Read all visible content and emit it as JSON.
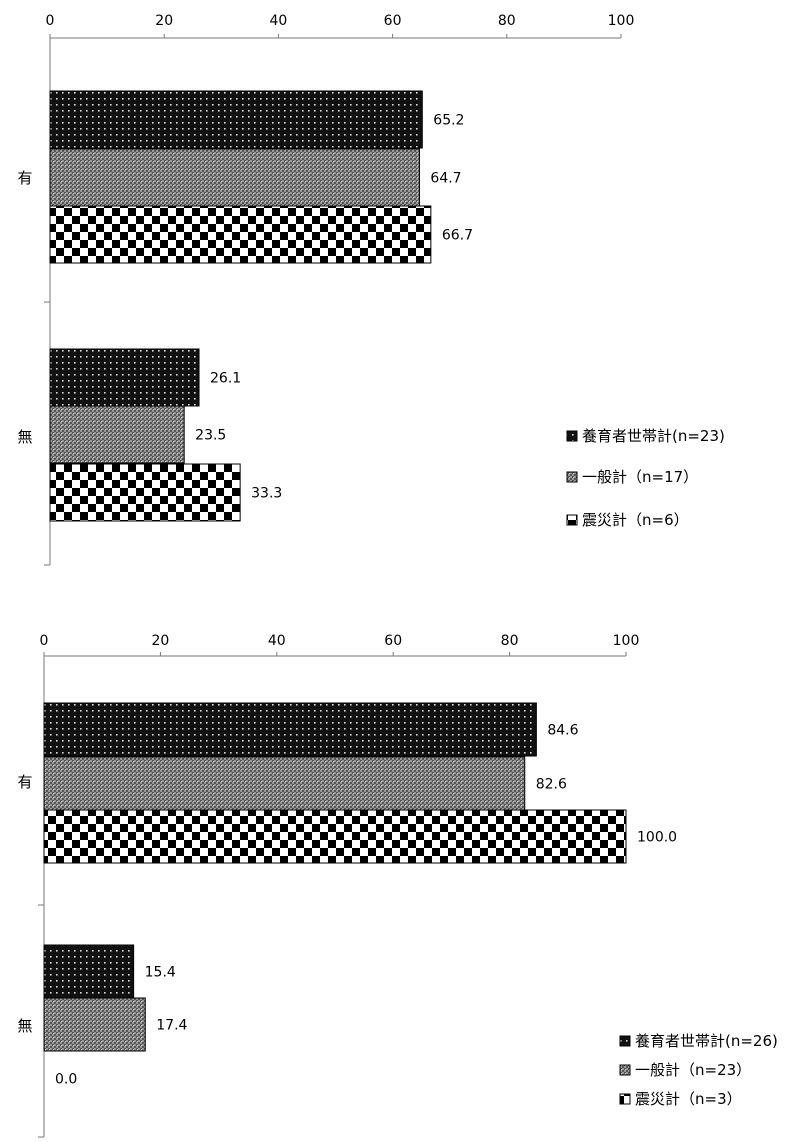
{
  "chart_data": [
    {
      "type": "bar",
      "orientation": "horizontal",
      "xlim": [
        0,
        100
      ],
      "ticks": [
        "0",
        "20",
        "40",
        "60",
        "80",
        "100"
      ],
      "categories": [
        "有",
        "無"
      ],
      "series": [
        {
          "name": "養育者世帯計(n=23)",
          "values": [
            65.2,
            26.1
          ],
          "labels": [
            "65.2",
            "26.1"
          ],
          "pattern": "dots-black"
        },
        {
          "name": "一般計（n=17）",
          "values": [
            64.7,
            23.5
          ],
          "labels": [
            "64.7",
            "23.5"
          ],
          "pattern": "fine-grey"
        },
        {
          "name": "震災計（n=6）",
          "values": [
            66.7,
            33.3
          ],
          "labels": [
            "66.7",
            "33.3"
          ],
          "pattern": "checker"
        }
      ],
      "legend": "right",
      "grid": false
    },
    {
      "type": "bar",
      "orientation": "horizontal",
      "xlim": [
        0,
        100
      ],
      "ticks": [
        "0",
        "20",
        "40",
        "60",
        "80",
        "100"
      ],
      "categories": [
        "有",
        "無"
      ],
      "series": [
        {
          "name": "養育者世帯計(n=26)",
          "values": [
            84.6,
            15.4
          ],
          "labels": [
            "84.6",
            "15.4"
          ],
          "pattern": "dots-black"
        },
        {
          "name": "一般計（n=23）",
          "values": [
            82.6,
            17.4
          ],
          "labels": [
            "82.6",
            "17.4"
          ],
          "pattern": "fine-grey"
        },
        {
          "name": "震災計（n=3）",
          "values": [
            100.0,
            0.0
          ],
          "labels": [
            "100.0",
            "0.0"
          ],
          "pattern": "checker"
        }
      ],
      "legend": "bottom-right",
      "grid": false
    }
  ]
}
